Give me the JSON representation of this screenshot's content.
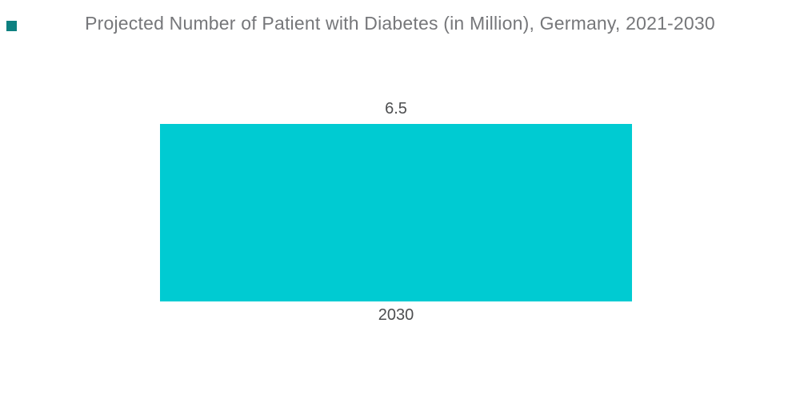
{
  "page": {
    "background": "#ffffff"
  },
  "brand": {
    "square_color": "#0d8080"
  },
  "chart_data": {
    "type": "bar",
    "title": "Projected Number of Patient with Diabetes (in Million), Germany, 2021-2030",
    "categories": [
      "2030"
    ],
    "values": [
      6.5
    ],
    "value_labels": [
      "6.5"
    ],
    "series_name": "Projected Number of Patient with Diabetes (in Million)",
    "xlabel": "",
    "ylabel": "",
    "ylim": [
      0,
      6.5
    ],
    "grid": false,
    "legend": false,
    "axes_visible": false,
    "bar_color": "#00cbd2",
    "title_color": "#76777a",
    "label_color": "#4d4e50"
  }
}
